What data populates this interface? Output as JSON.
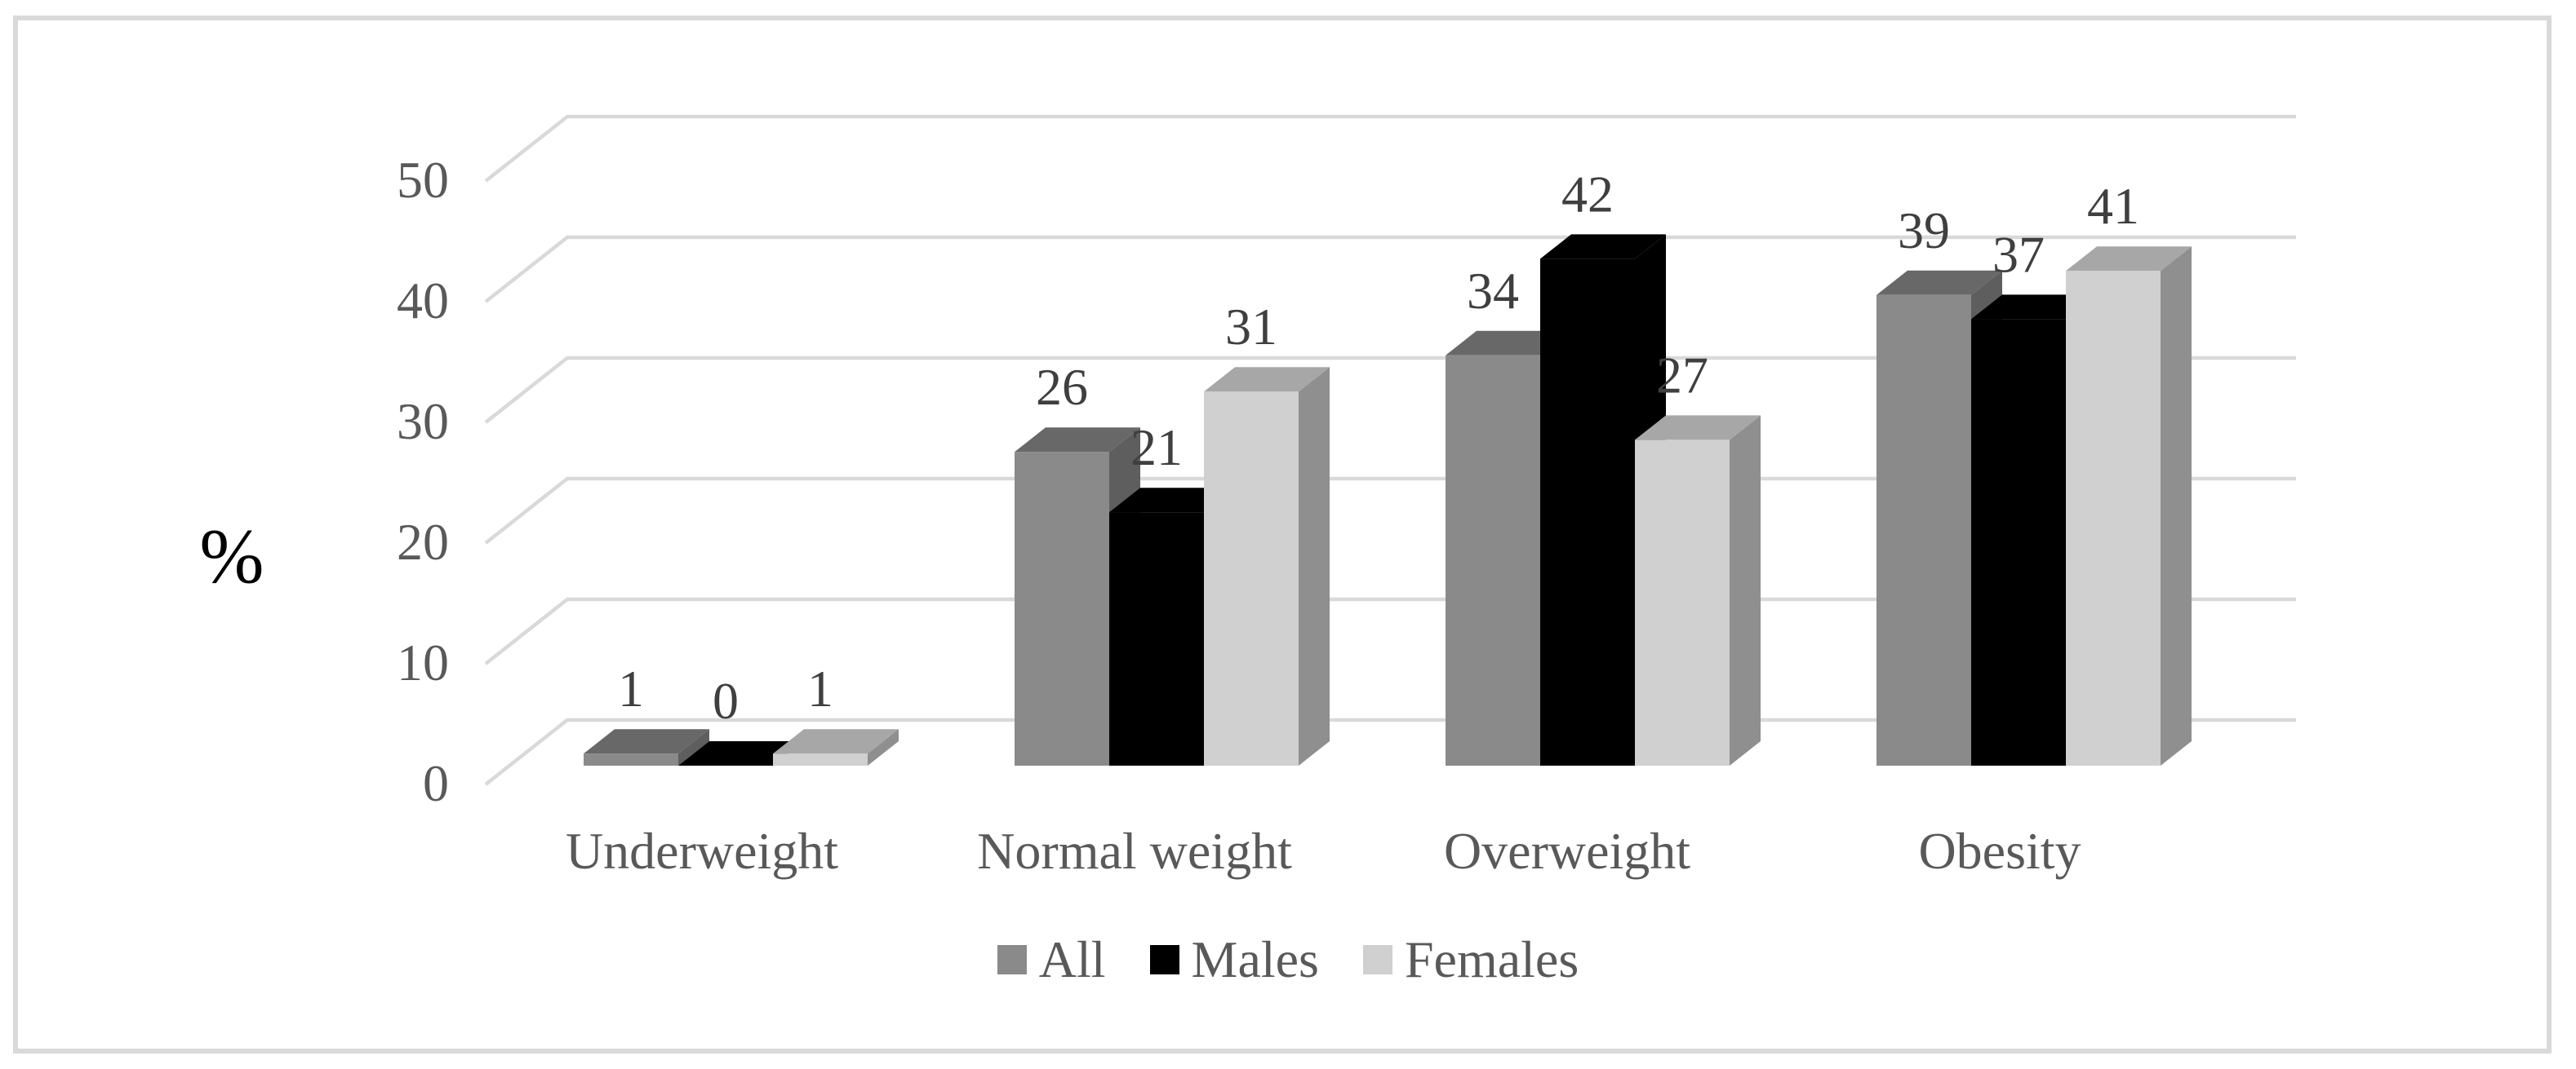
{
  "axis_title": "%",
  "chart_data": {
    "type": "bar",
    "view": "3d",
    "title": "",
    "categories": [
      "Underweight",
      "Normal weight",
      "Overweight",
      "Obesity"
    ],
    "series": [
      {
        "name": "All",
        "values": [
          1,
          26,
          34,
          39
        ],
        "color": "#8A8A8A",
        "color_top": "#686868",
        "color_side": "#5E5E5E"
      },
      {
        "name": "Males",
        "values": [
          0,
          21,
          42,
          37
        ],
        "color": "#000000",
        "color_top": "#000000",
        "color_side": "#000000"
      },
      {
        "name": "Females",
        "values": [
          1,
          31,
          27,
          41
        ],
        "color": "#D0D0D0",
        "color_top": "#A7A7A7",
        "color_side": "#8F8F8F"
      }
    ],
    "ylabel": "%",
    "y_ticks": [
      0,
      10,
      20,
      30,
      40,
      50
    ],
    "ylim": [
      0,
      50
    ],
    "grid": true,
    "gridline_color": "#D9D9D9",
    "data_labels": true,
    "data_label_color": "#3F3F3F",
    "legend_position": "bottom"
  }
}
